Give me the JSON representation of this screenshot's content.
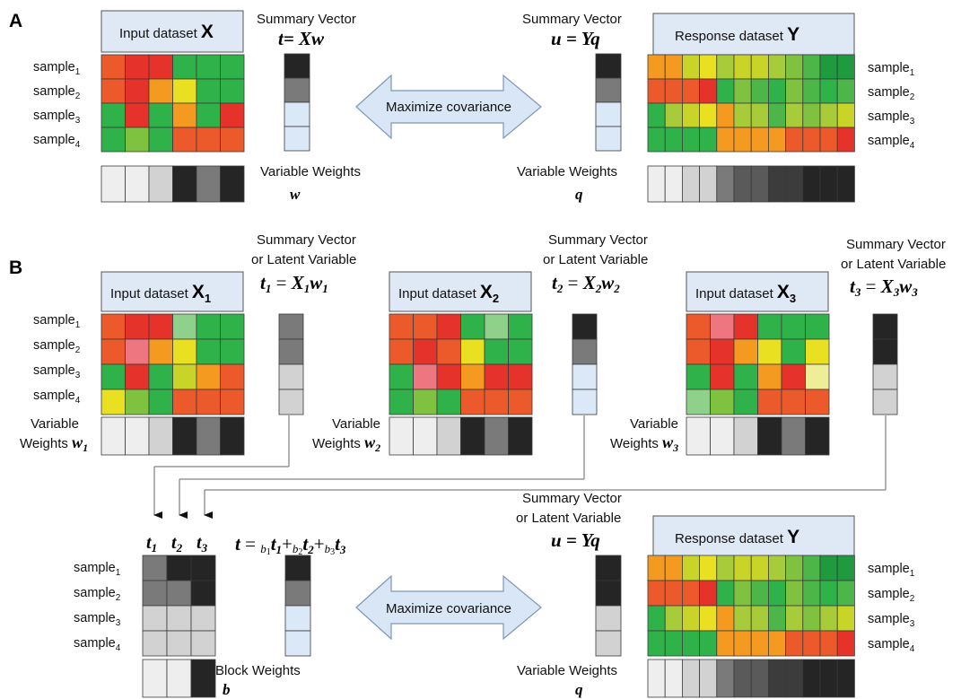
{
  "colors": {
    "heat": {
      "dg": "#1f9a3e",
      "g": "#30b24a",
      "mg": "#4cb748",
      "lg": "#7fc240",
      "lime": "#a8cb3a",
      "ye": "#e8e020",
      "yg": "#c8d428",
      "or": "#f49a20",
      "dor": "#ef7a26",
      "ro": "#ec5a2c",
      "r": "#e5322a",
      "pk": "#ee7680",
      "pg": "#8fd08a",
      "py": "#eeee99"
    },
    "grey": {
      "k": "#252525",
      "dk": "#3c3c3c",
      "d": "#5a5a5a",
      "m": "#7a7a7a",
      "l": "#d2d2d2",
      "vl": "#eeeeee",
      "b": "#dbe8f7"
    },
    "box_fill": "#dfe8f5",
    "arrow_fill": "#d8e6f5",
    "arrow_stroke": "#7e97b6"
  },
  "panelA": {
    "label": "A",
    "x_box_text": "Input dataset ",
    "x_box_sym": "X",
    "y_box_text": "Response dataset ",
    "y_box_sym": "Y",
    "sv_title_left": "Summary Vector",
    "eq_left": "t= Xw",
    "sv_title_right": "Summary Vector",
    "eq_right": "u = Yq",
    "arrow_text": "Maximize covariance",
    "weights_left": "Variable Weights",
    "w_sym": "w",
    "weights_right": "Variable Weights",
    "q_sym": "q",
    "samples": [
      "sample",
      "sample",
      "sample",
      "sample"
    ],
    "sample_subs": [
      "1",
      "2",
      "3",
      "4"
    ],
    "heat_x": [
      [
        "ro",
        "r",
        "r",
        "g",
        "g",
        "g"
      ],
      [
        "ro",
        "r",
        "or",
        "ye",
        "g",
        "g"
      ],
      [
        "g",
        "r",
        "g",
        "or",
        "g",
        "r"
      ],
      [
        "g",
        "lg",
        "g",
        "ro",
        "ro",
        "ro"
      ]
    ],
    "heat_y": [
      [
        "or",
        "or",
        "yg",
        "ye",
        "lime",
        "yg",
        "yg",
        "lime",
        "lg",
        "mg",
        "dg",
        "dg"
      ],
      [
        "ro",
        "ro",
        "ro",
        "r",
        "g",
        "lg",
        "mg",
        "g",
        "lg",
        "mg",
        "g",
        "mg"
      ],
      [
        "g",
        "lime",
        "yg",
        "ye",
        "or",
        "lime",
        "lime",
        "mg",
        "lime",
        "lg",
        "lime",
        "yg"
      ],
      [
        "g",
        "g",
        "g",
        "g",
        "or",
        "or",
        "or",
        "or",
        "ro",
        "ro",
        "ro",
        "r"
      ]
    ],
    "sv_t": [
      "k",
      "m",
      "b",
      "b"
    ],
    "sv_u": [
      "k",
      "m",
      "b",
      "b"
    ],
    "w_weights": [
      "vl",
      "vl",
      "l",
      "k",
      "m",
      "k"
    ],
    "q_weights": [
      "vl",
      "vl",
      "l",
      "l",
      "m",
      "d",
      "d",
      "dk",
      "dk",
      "k",
      "k",
      "k"
    ]
  },
  "panelB": {
    "label": "B",
    "sv_title": "Summary Vector",
    "sv_sub": "or Latent Variable",
    "blocks": [
      {
        "box_text": "Input dataset ",
        "box_sym": "X",
        "box_sub": "1",
        "eq_l": "t",
        "eq_ls": "1",
        "eq_r": "X",
        "eq_rs": "1",
        "eq_w": "w",
        "eq_ws": "1",
        "wlabel_1": "Variable",
        "wlabel_2": "Weights ",
        "wsym": "w",
        "wsub": "1",
        "heat": [
          [
            "ro",
            "r",
            "r",
            "pg",
            "g",
            "g"
          ],
          [
            "ro",
            "pk",
            "or",
            "ye",
            "g",
            "g"
          ],
          [
            "g",
            "r",
            "g",
            "yg",
            "or",
            "ro"
          ],
          [
            "ye",
            "lg",
            "g",
            "ro",
            "ro",
            "ro"
          ]
        ],
        "sv": [
          "m",
          "m",
          "l",
          "l"
        ],
        "weights": [
          "vl",
          "vl",
          "l",
          "k",
          "m",
          "k"
        ]
      },
      {
        "box_text": "Input dataset ",
        "box_sym": "X",
        "box_sub": "2",
        "eq_l": "t",
        "eq_ls": "2",
        "eq_r": "X",
        "eq_rs": "2",
        "eq_w": "w",
        "eq_ws": "2",
        "wlabel_1": "Variable",
        "wlabel_2": "Weights ",
        "wsym": "w",
        "wsub": "2",
        "heat": [
          [
            "ro",
            "ro",
            "r",
            "g",
            "pg",
            "g"
          ],
          [
            "ro",
            "r",
            "ro",
            "ye",
            "g",
            "g"
          ],
          [
            "g",
            "pk",
            "r",
            "or",
            "r",
            "r"
          ],
          [
            "g",
            "lg",
            "g",
            "ro",
            "ro",
            "ro"
          ]
        ],
        "sv": [
          "k",
          "m",
          "b",
          "b"
        ],
        "weights": [
          "vl",
          "vl",
          "l",
          "k",
          "m",
          "k"
        ]
      },
      {
        "box_text": "Input dataset ",
        "box_sym": "X",
        "box_sub": "3",
        "eq_l": "t",
        "eq_ls": "3",
        "eq_r": "X",
        "eq_rs": "3",
        "eq_w": "w",
        "eq_ws": "3",
        "wlabel_1": "Variable",
        "wlabel_2": "Weights ",
        "wsym": "w",
        "wsub": "3",
        "heat": [
          [
            "ro",
            "pk",
            "r",
            "g",
            "g",
            "g"
          ],
          [
            "ro",
            "r",
            "or",
            "ye",
            "g",
            "ye"
          ],
          [
            "g",
            "r",
            "g",
            "or",
            "r",
            "py"
          ],
          [
            "pg",
            "lg",
            "g",
            "ro",
            "ro",
            "ro"
          ]
        ],
        "sv": [
          "k",
          "k",
          "l",
          "l"
        ],
        "weights": [
          "vl",
          "vl",
          "l",
          "k",
          "m",
          "k"
        ]
      }
    ],
    "samples": [
      "sample",
      "sample",
      "sample",
      "sample"
    ],
    "sample_subs": [
      "1",
      "2",
      "3",
      "4"
    ],
    "t_headers": [
      {
        "s": "t",
        "sub": "1"
      },
      {
        "s": "t",
        "sub": "2"
      },
      {
        "s": "t",
        "sub": "3"
      }
    ],
    "super_matrix": [
      [
        "m",
        "k",
        "k"
      ],
      [
        "m",
        "m",
        "k"
      ],
      [
        "l",
        "l",
        "l"
      ],
      [
        "l",
        "l",
        "l"
      ]
    ],
    "block_weights": [
      "vl",
      "vl",
      "k"
    ],
    "block_weights_label": "Block Weights",
    "b_sym": "b",
    "eq_t": {
      "lhs": "t",
      "eq": " = ",
      "b": "b",
      "t": "t",
      "plus": "+"
    },
    "sv_t": [
      "k",
      "m",
      "b",
      "b"
    ],
    "arrow_text": "Maximize covariance",
    "eq_u": "u = Yq",
    "sv_u": [
      "k",
      "k",
      "l",
      "l"
    ],
    "y_box_text": "Response dataset ",
    "y_box_sym": "Y",
    "heat_y": [
      [
        "or",
        "or",
        "yg",
        "ye",
        "lime",
        "yg",
        "yg",
        "lime",
        "lg",
        "mg",
        "dg",
        "dg"
      ],
      [
        "ro",
        "ro",
        "ro",
        "r",
        "g",
        "lg",
        "mg",
        "g",
        "lg",
        "mg",
        "g",
        "mg"
      ],
      [
        "g",
        "lime",
        "yg",
        "ye",
        "or",
        "lime",
        "lime",
        "mg",
        "lime",
        "lg",
        "lime",
        "yg"
      ],
      [
        "g",
        "g",
        "g",
        "g",
        "or",
        "or",
        "or",
        "or",
        "ro",
        "ro",
        "ro",
        "r"
      ]
    ],
    "weights_right": "Variable Weights",
    "q_sym": "q",
    "q_weights": [
      "vl",
      "vl",
      "l",
      "l",
      "m",
      "d",
      "d",
      "dk",
      "dk",
      "k",
      "k",
      "k"
    ]
  }
}
